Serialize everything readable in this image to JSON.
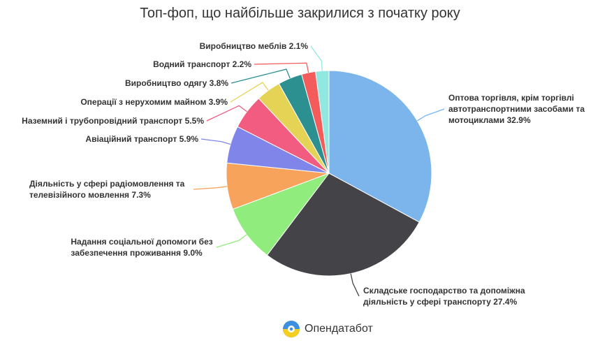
{
  "chart_data": {
    "type": "pie",
    "title": "Топ-фоп, що найбільше закрилися з початку року",
    "slices": [
      {
        "label": [
          "Оптова торгівля, крім торгівлі",
          "автотранспортними засобами та",
          "мотоциклами 32.9%"
        ],
        "value": 32.9,
        "color": "#7cb5ec"
      },
      {
        "label": [
          "Складське господарство та допоміжна",
          "діяльність у сфері транспорту 27.4%"
        ],
        "value": 27.4,
        "color": "#434348"
      },
      {
        "label": [
          "Надання соціальної допомоги без",
          "забезпечення проживання 9.0%"
        ],
        "value": 9.0,
        "color": "#90ed7d"
      },
      {
        "label": [
          "Діяльність у сфері радіомовлення та",
          "телевізійного мовлення 7.3%"
        ],
        "value": 7.3,
        "color": "#f7a35c"
      },
      {
        "label": [
          "Авіаційний транспорт 5.9%"
        ],
        "value": 5.9,
        "color": "#8085e9"
      },
      {
        "label": [
          "Наземний і трубопровідний транспорт 5.5%"
        ],
        "value": 5.5,
        "color": "#f15c80"
      },
      {
        "label": [
          "Операції з нерухомим майном 3.9%"
        ],
        "value": 3.9,
        "color": "#e4d354"
      },
      {
        "label": [
          "Виробництво одягу 3.8%"
        ],
        "value": 3.8,
        "color": "#2b908f"
      },
      {
        "label": [
          "Водний транспорт 2.2%"
        ],
        "value": 2.2,
        "color": "#f45b5b"
      },
      {
        "label": [
          "Виробництво меблів 2.1%"
        ],
        "value": 2.1,
        "color": "#91e8e1"
      }
    ]
  },
  "brand": {
    "name": "Опендатабот",
    "icon": "opendatabot-logo-icon"
  }
}
